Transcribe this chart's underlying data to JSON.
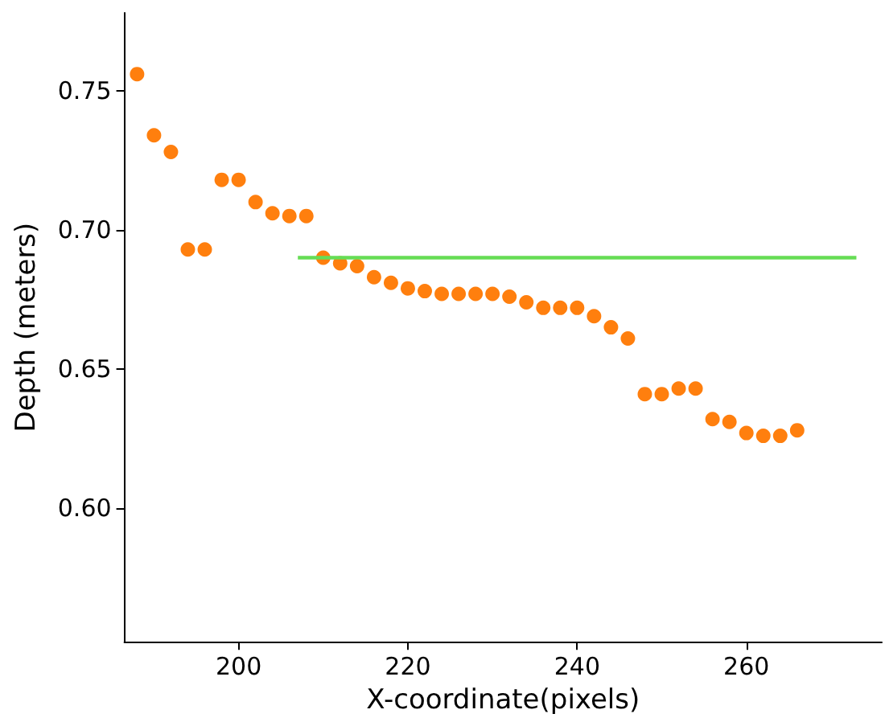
{
  "chart_data": {
    "type": "scatter",
    "xlabel": "X-coordinate(pixels)",
    "ylabel": "Depth (meters)",
    "xlim": [
      186.5,
      276
    ],
    "ylim": [
      0.552,
      0.778
    ],
    "xticks": [
      200,
      220,
      240,
      260
    ],
    "yticks": [
      {
        "value": 0.6,
        "label": "0.60"
      },
      0.65,
      {
        "value": 0.7,
        "label": "0.70"
      },
      0.75
    ],
    "grid": false,
    "series": [
      {
        "marker": "circle",
        "color": "#ff7f0e",
        "x": [
          188,
          190,
          192,
          194,
          196,
          198,
          200,
          202,
          204,
          206,
          208,
          210,
          212,
          214,
          216,
          218,
          220,
          222,
          224,
          226,
          228,
          230,
          232,
          234,
          236,
          238,
          240,
          242,
          244,
          246,
          248,
          250,
          252,
          254,
          256,
          258,
          260,
          262,
          264,
          266
        ],
        "values": [
          0.756,
          0.734,
          0.728,
          0.693,
          0.693,
          0.718,
          0.718,
          0.71,
          0.706,
          0.705,
          0.705,
          0.69,
          0.688,
          0.687,
          0.683,
          0.681,
          0.679,
          0.678,
          0.677,
          0.677,
          0.677,
          0.677,
          0.676,
          0.674,
          0.672,
          0.672,
          0.672,
          0.669,
          0.665,
          0.661,
          0.641,
          0.641,
          0.643,
          0.643,
          0.632,
          0.631,
          0.627,
          0.626,
          0.626,
          0.628
        ]
      },
      {
        "type": "line",
        "color": "#66dd55",
        "x": [
          207,
          273
        ],
        "values": [
          0.69,
          0.69
        ]
      }
    ]
  }
}
